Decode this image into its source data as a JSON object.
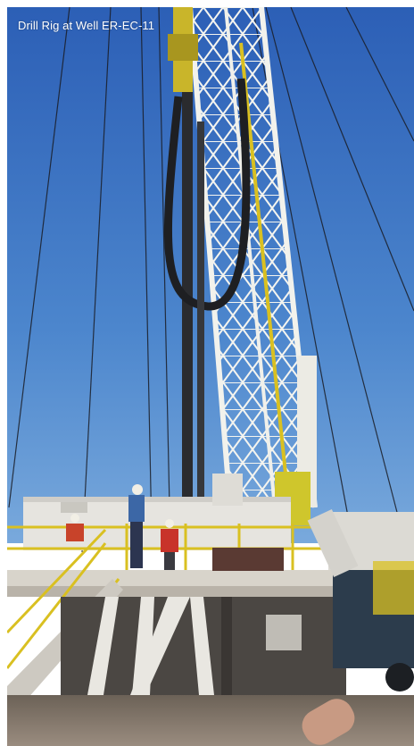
{
  "photo": {
    "caption": "Drill Rig at Well ER-EC-11",
    "colors": {
      "sky_top": "#2f62b8",
      "sky_bottom": "#5f97d6",
      "derrick": "#f3f3ee",
      "safety_yellow": "#d9c021",
      "hose": "#1e1f22",
      "ground": "#8b7f72"
    }
  }
}
